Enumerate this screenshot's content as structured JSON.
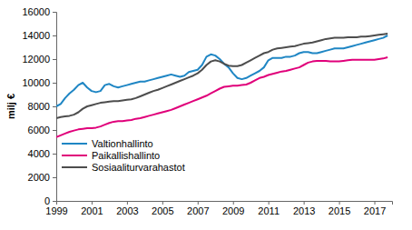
{
  "chart_data": {
    "type": "line",
    "y_label": "milj €",
    "x": [
      1999,
      1999.25,
      1999.5,
      1999.75,
      2000,
      2000.25,
      2000.5,
      2000.75,
      2001,
      2001.25,
      2001.5,
      2001.75,
      2002,
      2002.25,
      2002.5,
      2002.75,
      2003,
      2003.25,
      2003.5,
      2003.75,
      2004,
      2004.25,
      2004.5,
      2004.75,
      2005,
      2005.25,
      2005.5,
      2005.75,
      2006,
      2006.25,
      2006.5,
      2006.75,
      2007,
      2007.25,
      2007.5,
      2007.75,
      2008,
      2008.25,
      2008.5,
      2008.75,
      2009,
      2009.25,
      2009.5,
      2009.75,
      2010,
      2010.25,
      2010.5,
      2010.75,
      2011,
      2011.25,
      2011.5,
      2011.75,
      2012,
      2012.25,
      2012.5,
      2012.75,
      2013,
      2013.25,
      2013.5,
      2013.75,
      2014,
      2014.25,
      2014.5,
      2014.75,
      2015,
      2015.25,
      2015.5,
      2015.75,
      2016,
      2016.25,
      2016.5,
      2016.75,
      2017,
      2017.25,
      2017.5,
      2017.75
    ],
    "series": [
      {
        "name": "Valtionhallinto",
        "color": "#1f86c4",
        "values": [
          8000,
          8200,
          8700,
          9100,
          9400,
          9800,
          10000,
          9600,
          9300,
          9200,
          9300,
          9800,
          9900,
          9700,
          9600,
          9700,
          9800,
          9900,
          10000,
          10100,
          10100,
          10200,
          10300,
          10400,
          10500,
          10600,
          10700,
          10600,
          10500,
          10600,
          10900,
          11000,
          11100,
          11500,
          12200,
          12400,
          12300,
          12000,
          11600,
          11300,
          10800,
          10400,
          10300,
          10400,
          10600,
          10800,
          11000,
          11300,
          11900,
          12100,
          12100,
          12100,
          12200,
          12200,
          12300,
          12500,
          12600,
          12600,
          12500,
          12500,
          12600,
          12700,
          12800,
          12900,
          12900,
          12900,
          13000,
          13100,
          13200,
          13300,
          13400,
          13500,
          13600,
          13700,
          13800,
          14000
        ]
      },
      {
        "name": "Paikallishallinto",
        "color": "#e0007a",
        "values": [
          5400,
          5550,
          5700,
          5850,
          5950,
          6050,
          6100,
          6150,
          6150,
          6200,
          6300,
          6450,
          6600,
          6700,
          6750,
          6750,
          6800,
          6850,
          6950,
          7000,
          7100,
          7200,
          7300,
          7400,
          7500,
          7600,
          7700,
          7850,
          8000,
          8150,
          8300,
          8450,
          8600,
          8750,
          8900,
          9100,
          9300,
          9500,
          9650,
          9700,
          9750,
          9750,
          9800,
          9850,
          10000,
          10200,
          10400,
          10500,
          10650,
          10750,
          10850,
          10950,
          11000,
          11100,
          11200,
          11300,
          11500,
          11700,
          11800,
          11850,
          11850,
          11850,
          11800,
          11800,
          11800,
          11850,
          11900,
          11950,
          11950,
          11950,
          11950,
          11950,
          11950,
          12000,
          12050,
          12150
        ]
      },
      {
        "name": "Sosiaaliturvarahastot",
        "color": "#4d4d4d",
        "values": [
          7000,
          7100,
          7150,
          7200,
          7300,
          7500,
          7800,
          8000,
          8100,
          8200,
          8300,
          8350,
          8400,
          8450,
          8450,
          8500,
          8550,
          8600,
          8700,
          8850,
          9000,
          9150,
          9300,
          9400,
          9550,
          9700,
          9850,
          10000,
          10150,
          10300,
          10450,
          10600,
          10800,
          11100,
          11500,
          11800,
          11900,
          11800,
          11600,
          11450,
          11400,
          11400,
          11500,
          11700,
          11900,
          12100,
          12300,
          12500,
          12600,
          12800,
          12900,
          12950,
          13000,
          13050,
          13100,
          13200,
          13300,
          13350,
          13400,
          13500,
          13600,
          13700,
          13750,
          13800,
          13800,
          13800,
          13850,
          13850,
          13850,
          13900,
          13900,
          13950,
          14000,
          14050,
          14100,
          14150
        ]
      }
    ],
    "xlim": [
      1999,
      2018
    ],
    "xticks": [
      1999,
      2001,
      2003,
      2005,
      2007,
      2009,
      2011,
      2013,
      2015,
      2017
    ],
    "ylim": [
      0,
      16000
    ],
    "yticks": [
      0,
      2000,
      4000,
      6000,
      8000,
      10000,
      12000,
      14000,
      16000
    ],
    "grid": false,
    "legend": "lower left"
  }
}
